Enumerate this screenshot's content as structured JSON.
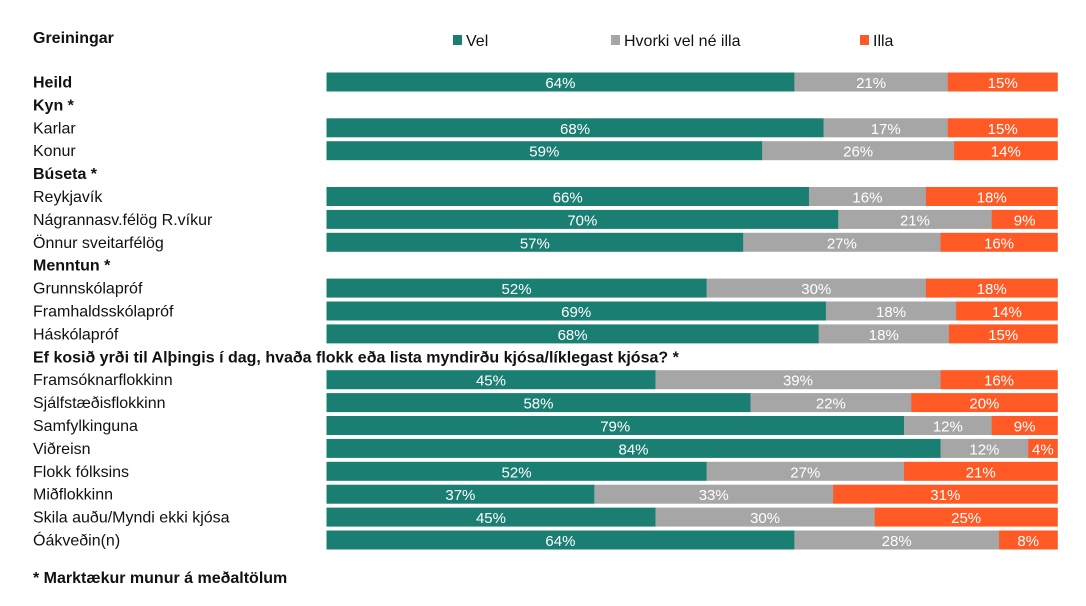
{
  "chart_data": {
    "type": "bar",
    "orientation": "horizontal",
    "stacked": true,
    "percent_scale": true,
    "header": "Greiningar",
    "footnote": "* Marktækur munur á meðaltölum",
    "series": [
      {
        "name": "Vel",
        "color": "#1a7f72"
      },
      {
        "name": "Hvorki vel né illa",
        "color": "#a6a6a6"
      },
      {
        "name": "Illa",
        "color": "#ff5a26"
      }
    ],
    "rows": [
      {
        "label": "Heild",
        "bold": true,
        "values": [
          64,
          21,
          15
        ]
      },
      {
        "label": "Kyn *",
        "bold": true
      },
      {
        "label": "Karlar",
        "values": [
          68,
          17,
          15
        ]
      },
      {
        "label": "Konur",
        "values": [
          59,
          26,
          14
        ]
      },
      {
        "label": "Búseta *",
        "bold": true
      },
      {
        "label": "Reykjavík",
        "values": [
          66,
          16,
          18
        ]
      },
      {
        "label": "Nágrannasv.félög R.víkur",
        "values": [
          70,
          21,
          9
        ]
      },
      {
        "label": "Önnur sveitarfélög",
        "values": [
          57,
          27,
          16
        ]
      },
      {
        "label": "Menntun *",
        "bold": true
      },
      {
        "label": "Grunnskólapróf",
        "values": [
          52,
          30,
          18
        ]
      },
      {
        "label": "Framhaldsskólapróf",
        "values": [
          69,
          18,
          14
        ]
      },
      {
        "label": "Háskólapróf",
        "values": [
          68,
          18,
          15
        ]
      },
      {
        "label": "Ef kosið yrði til Alþingis í dag, hvaða flokk eða lista myndirðu kjósa/líklegast kjósa? *",
        "bold": true
      },
      {
        "label": "Framsóknarflokkinn",
        "values": [
          45,
          39,
          16
        ]
      },
      {
        "label": "Sjálfstæðisflokkinn",
        "values": [
          58,
          22,
          20
        ]
      },
      {
        "label": "Samfylkinguna",
        "values": [
          79,
          12,
          9
        ]
      },
      {
        "label": "Viðreisn",
        "values": [
          84,
          12,
          4
        ]
      },
      {
        "label": "Flokk fólksins",
        "values": [
          52,
          27,
          21
        ]
      },
      {
        "label": "Miðflokkinn",
        "values": [
          37,
          33,
          31
        ]
      },
      {
        "label": "Skila auðu/Myndi ekki kjósa",
        "values": [
          45,
          30,
          25
        ]
      },
      {
        "label": "Óákveðin(n)",
        "values": [
          64,
          28,
          8
        ]
      }
    ]
  }
}
